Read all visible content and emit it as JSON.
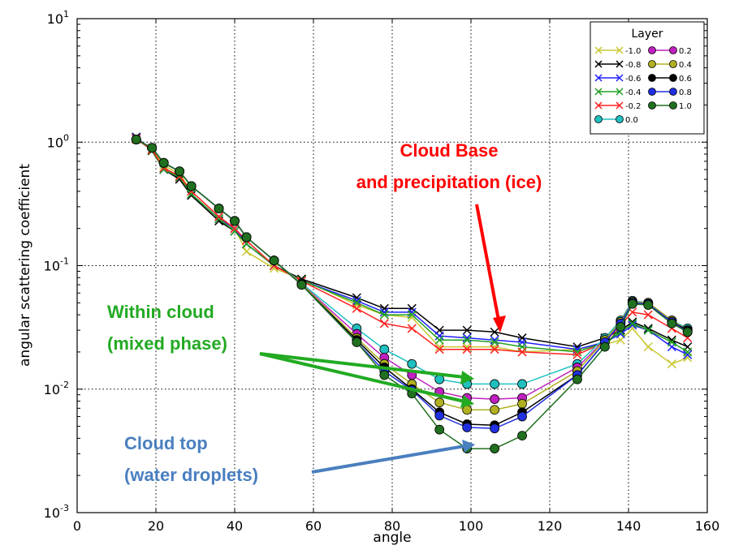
{
  "chart_data": {
    "type": "line",
    "xlabel": "angle",
    "ylabel": "angular scattering coefficient",
    "xlim": [
      0,
      160
    ],
    "ylim": [
      0.001,
      10
    ],
    "yscale": "log",
    "grid": true,
    "x_ticks": [
      0,
      20,
      40,
      60,
      80,
      100,
      120,
      140,
      160
    ],
    "y_ticks": [
      {
        "value": 0.001,
        "base": "10",
        "exp": "-3"
      },
      {
        "value": 0.01,
        "base": "10",
        "exp": "-2"
      },
      {
        "value": 0.1,
        "base": "10",
        "exp": "-1"
      },
      {
        "value": 1,
        "base": "10",
        "exp": "0"
      },
      {
        "value": 10,
        "base": "10",
        "exp": "1"
      }
    ],
    "legend": {
      "title": "Layer",
      "position": "top-right"
    },
    "x": [
      15,
      19,
      22,
      26,
      29,
      36,
      40,
      43,
      50,
      57,
      71,
      78,
      85,
      92,
      99,
      106,
      113,
      127,
      134,
      138,
      141,
      145,
      151,
      155
    ],
    "series": [
      {
        "name": "-1.0",
        "color": "#c8c832",
        "marker": "x",
        "values": [
          1.05,
          0.88,
          0.65,
          0.55,
          0.4,
          0.25,
          0.2,
          0.13,
          0.095,
          0.078,
          0.048,
          0.04,
          0.038,
          0.022,
          0.022,
          0.022,
          0.02,
          0.021,
          0.023,
          0.025,
          0.031,
          0.022,
          0.016,
          0.018
        ]
      },
      {
        "name": "-0.8",
        "color": "#000000",
        "marker": "x",
        "values": [
          1.1,
          0.85,
          0.6,
          0.5,
          0.37,
          0.23,
          0.19,
          0.15,
          0.1,
          0.078,
          0.055,
          0.045,
          0.045,
          0.03,
          0.03,
          0.029,
          0.026,
          0.022,
          0.026,
          0.03,
          0.035,
          0.031,
          0.025,
          0.022
        ]
      },
      {
        "name": "-0.6",
        "color": "#2020ff",
        "marker": "x",
        "values": [
          1.08,
          0.87,
          0.6,
          0.52,
          0.38,
          0.24,
          0.2,
          0.15,
          0.1,
          0.076,
          0.052,
          0.042,
          0.042,
          0.027,
          0.026,
          0.025,
          0.024,
          0.021,
          0.024,
          0.028,
          0.033,
          0.03,
          0.022,
          0.019
        ]
      },
      {
        "name": "-0.4",
        "color": "#20a020",
        "marker": "x",
        "values": [
          1.06,
          0.86,
          0.6,
          0.52,
          0.38,
          0.24,
          0.19,
          0.15,
          0.1,
          0.076,
          0.05,
          0.04,
          0.04,
          0.025,
          0.025,
          0.024,
          0.022,
          0.02,
          0.024,
          0.029,
          0.034,
          0.03,
          0.024,
          0.02
        ]
      },
      {
        "name": "-0.2",
        "color": "#ff2020",
        "marker": "x",
        "values": [
          1.06,
          0.87,
          0.62,
          0.53,
          0.4,
          0.25,
          0.2,
          0.16,
          0.1,
          0.075,
          0.045,
          0.034,
          0.031,
          0.021,
          0.021,
          0.021,
          0.02,
          0.019,
          0.024,
          0.033,
          0.042,
          0.04,
          0.031,
          0.026
        ]
      },
      {
        "name": "0.0",
        "color": "#20c0c0",
        "marker": "o",
        "values": [
          1.05,
          0.9,
          0.68,
          0.58,
          0.44,
          0.29,
          0.23,
          0.17,
          0.11,
          0.072,
          0.031,
          0.021,
          0.016,
          0.012,
          0.011,
          0.011,
          0.011,
          0.016,
          0.026,
          0.036,
          0.052,
          0.05,
          0.036,
          0.031
        ]
      },
      {
        "name": "0.2",
        "color": "#c020c0",
        "marker": "o",
        "values": [
          1.05,
          0.9,
          0.68,
          0.58,
          0.44,
          0.29,
          0.23,
          0.17,
          0.11,
          0.071,
          0.028,
          0.018,
          0.013,
          0.0095,
          0.0085,
          0.0083,
          0.0085,
          0.015,
          0.025,
          0.035,
          0.051,
          0.05,
          0.036,
          0.03
        ]
      },
      {
        "name": "0.4",
        "color": "#b0b020",
        "marker": "o",
        "values": [
          1.05,
          0.9,
          0.68,
          0.58,
          0.44,
          0.29,
          0.23,
          0.17,
          0.11,
          0.071,
          0.026,
          0.016,
          0.011,
          0.0078,
          0.0068,
          0.0068,
          0.0076,
          0.014,
          0.025,
          0.035,
          0.051,
          0.05,
          0.036,
          0.03
        ]
      },
      {
        "name": "0.6",
        "color": "#000000",
        "marker": "o",
        "values": [
          1.05,
          0.9,
          0.68,
          0.58,
          0.44,
          0.29,
          0.23,
          0.17,
          0.11,
          0.07,
          0.025,
          0.015,
          0.01,
          0.0065,
          0.0052,
          0.0051,
          0.0065,
          0.013,
          0.024,
          0.034,
          0.05,
          0.049,
          0.035,
          0.03
        ]
      },
      {
        "name": "0.8",
        "color": "#2030e0",
        "marker": "o",
        "values": [
          1.05,
          0.9,
          0.68,
          0.58,
          0.44,
          0.29,
          0.23,
          0.17,
          0.11,
          0.07,
          0.024,
          0.014,
          0.0098,
          0.0061,
          0.0049,
          0.0048,
          0.006,
          0.013,
          0.024,
          0.034,
          0.05,
          0.049,
          0.035,
          0.029
        ]
      },
      {
        "name": "1.0",
        "color": "#207020",
        "marker": "o",
        "values": [
          1.05,
          0.9,
          0.68,
          0.58,
          0.44,
          0.29,
          0.23,
          0.17,
          0.11,
          0.07,
          0.024,
          0.013,
          0.0092,
          0.0047,
          0.0033,
          0.0033,
          0.0042,
          0.012,
          0.022,
          0.032,
          0.049,
          0.048,
          0.034,
          0.029
        ]
      }
    ],
    "annotations": [
      {
        "lines": [
          "Cloud Base",
          "and precipitation (ice)"
        ],
        "color": "#ff0000"
      },
      {
        "lines": [
          "Within cloud",
          "(mixed phase)"
        ],
        "color": "#22aa22"
      },
      {
        "lines": [
          "Cloud top",
          "(water droplets)"
        ],
        "color": "#4a7fbf"
      }
    ]
  }
}
